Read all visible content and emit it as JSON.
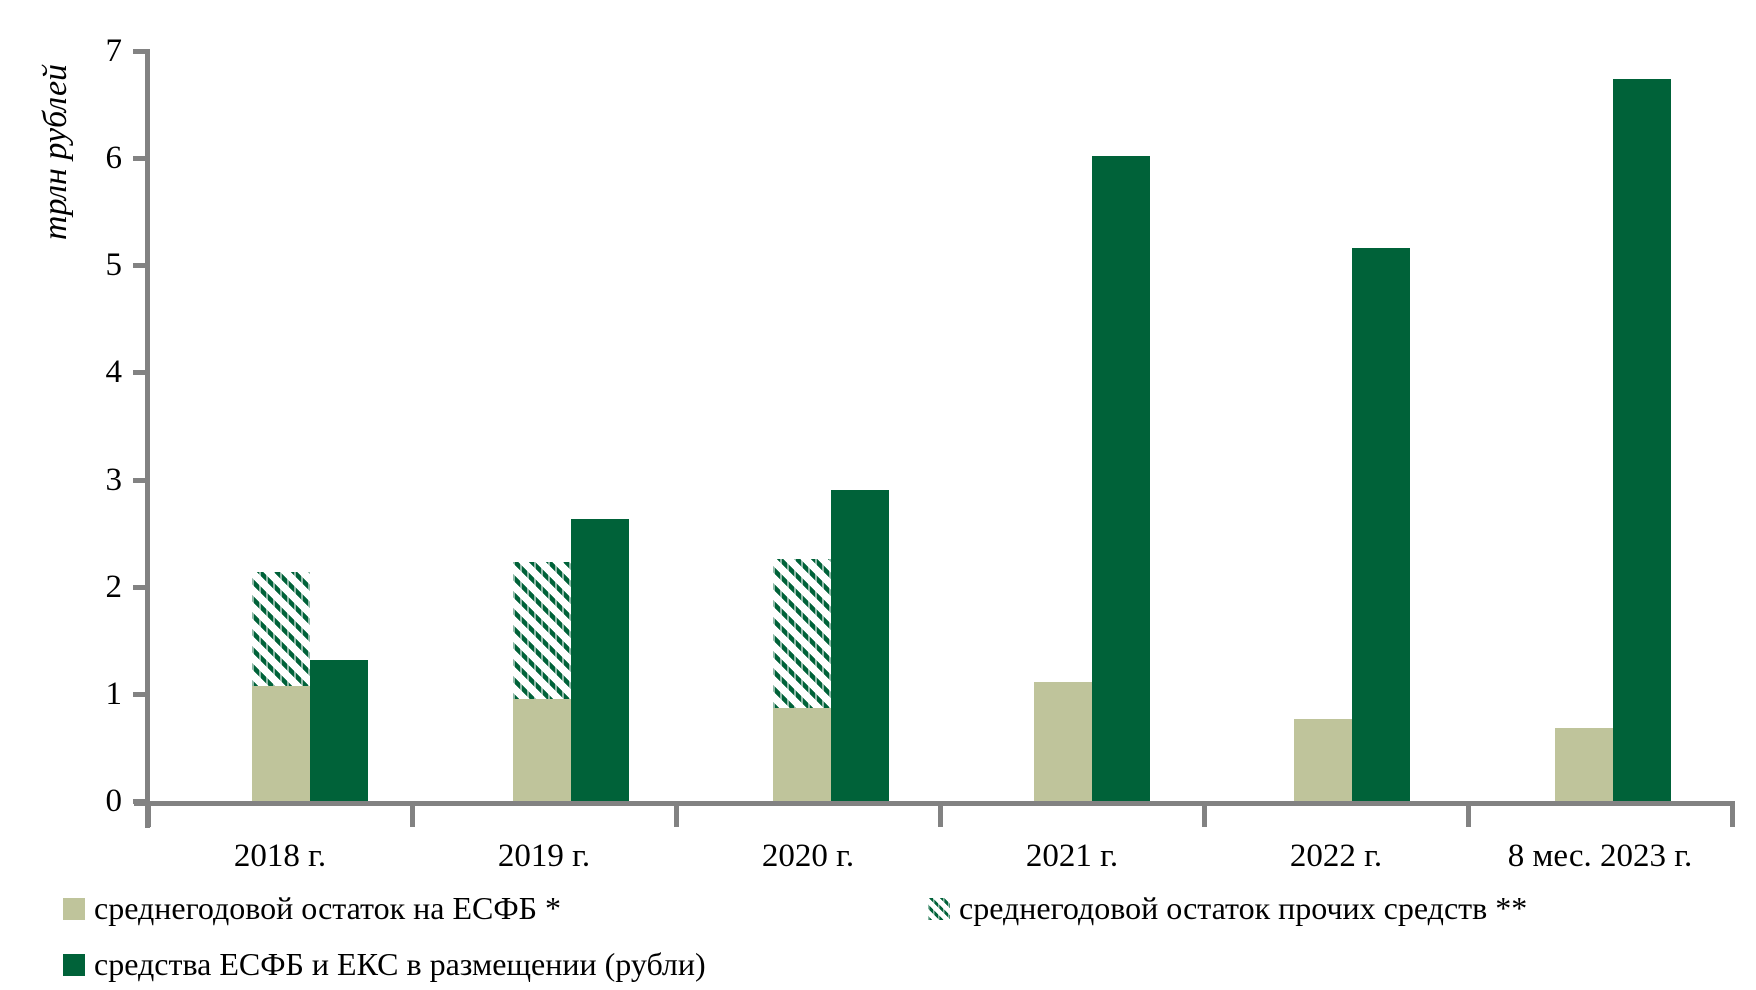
{
  "chart_data": {
    "type": "bar",
    "title": "",
    "ylabel": "трлн рублей",
    "xlabel": "",
    "ylim": [
      0,
      7
    ],
    "yticks": [
      "0",
      "1",
      "2",
      "3",
      "4",
      "5",
      "6",
      "7"
    ],
    "grid": false,
    "legend_position": "bottom",
    "categories": [
      "2018 г.",
      "2019 г.",
      "2020 г.",
      "2021 г.",
      "2022 г.",
      "8 мес. 2023 г."
    ],
    "series": [
      {
        "name": "среднегодовой остаток на ЕСФБ *",
        "style": "solid-light",
        "color": "#bfc49b",
        "values": [
          1.07,
          0.95,
          0.87,
          1.11,
          0.77,
          0.68
        ]
      },
      {
        "name": "среднегодовой остаток прочих средств **",
        "style": "hatched",
        "color": "#006239",
        "stacked_on": "среднегодовой остаток на ЕСФБ *",
        "values": [
          1.07,
          1.28,
          1.39,
          0,
          0,
          0
        ]
      },
      {
        "name": "средства ЕСФБ и ЕКС в размещении (рубли)",
        "style": "solid-dark",
        "color": "#006239",
        "values": [
          1.32,
          2.63,
          2.9,
          6.02,
          5.16,
          6.74
        ]
      }
    ],
    "colors": {
      "axis": "#828282",
      "text": "#000000",
      "background": "#ffffff"
    }
  }
}
